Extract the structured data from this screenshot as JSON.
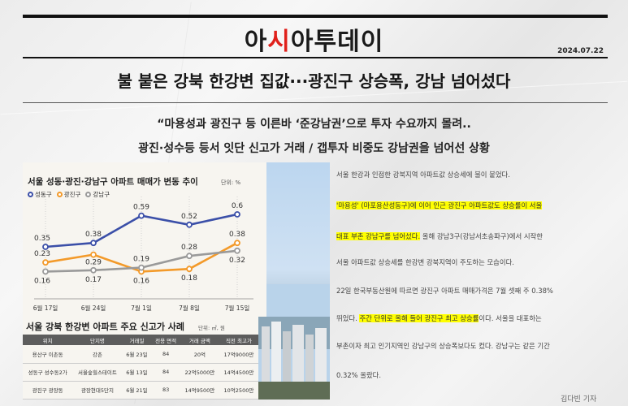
{
  "masthead": {
    "logo_a": "아",
    "logo_b": "시",
    "logo_c": "아투데이",
    "date": "2024.07.22"
  },
  "headline": "불 붙은 강북 한강변 집값···광진구 상승폭, 강남 넘어섰다",
  "subheads": [
    "“마용성과 광진구 등 이른바 ‘준강남권’으로 투자 수요까지 몰려..",
    "광진·성수등 등서 잇단 신고가 거래 / 갭투자 비중도 강남권을 넘어선 상황"
  ],
  "chart": {
    "title": "서울 성동·광진·강남구 아파트 매매가 변동 추이",
    "unit": "단위: %",
    "legend": [
      "성동구",
      "광진구",
      "강남구"
    ]
  },
  "chart_data": {
    "type": "line",
    "x": [
      "6월 17일",
      "6월 24일",
      "7월 1일",
      "7월 8일",
      "7월 15일"
    ],
    "series": [
      {
        "name": "성동구",
        "values": [
          0.35,
          0.38,
          0.59,
          0.52,
          0.6
        ],
        "color": "#3b4fa8"
      },
      {
        "name": "광진구",
        "values": [
          0.23,
          0.29,
          0.16,
          0.18,
          0.38
        ],
        "color": "#f39a2a"
      },
      {
        "name": "강남구",
        "values": [
          0.16,
          0.17,
          0.19,
          0.28,
          0.32
        ],
        "color": "#9a9a9a"
      }
    ],
    "title": "서울 성동·광진·강남구 아파트 매매가 변동 추이",
    "ylabel": "단위: %",
    "ylim": [
      0,
      0.7
    ],
    "grid": true,
    "legend": "top-left"
  },
  "table": {
    "title": "서울 강북 한강변 아파트 주요 신고가 사례",
    "unit": "단위: ㎡, 원",
    "headers": [
      "위치",
      "단지명",
      "거래일",
      "전용 면적",
      "거래 금액",
      "직전 최고가"
    ],
    "rows": [
      [
        "용산구 이촌동",
        "강촌",
        "6월 23일",
        "84",
        "20억",
        "17억9000만"
      ],
      [
        "성동구 성수동2가",
        "서울숲힐스테이트",
        "6월 13일",
        "84",
        "22억5000만",
        "14억4500만"
      ],
      [
        "광진구 광장동",
        "광장현대5단지",
        "6월 21일",
        "83",
        "14억9500만",
        "10억2500만"
      ]
    ]
  },
  "article": {
    "p1": "서울 한강과 인접한 강북지역 아파트값 상승세에 불이 붙었다.",
    "p2_hl": "'마용성' (마포용산성동구)에 이어 인근 광진구 아파트값도 상승률이 서울",
    "p3_hl": "대표 부촌 강남구를 넘어섰다.",
    "p3_rest": " 올해 강남3구(강남서초송파구)에서 시작한",
    "p4": "서울 아파트값 상승세를 한강변 강북지역이 주도하는 모습이다.",
    "p5": "22일 한국부동산원에 따르면 광진구 아파트 매매가격은 7월 셋째 주 0.38%",
    "p6_pre": "뛰었다. ",
    "p6_hl": "주간 단위로 올해 들어 광진구 최고 상승률",
    "p6_post": "이다. 서울을 대표하는",
    "p7": "부촌이자 최고 인기지역인 강남구의 상승폭보다도 컸다. 강남구는 같은 기간",
    "p8": "0.32% 올랐다.",
    "byline": "김다빈 기자"
  }
}
